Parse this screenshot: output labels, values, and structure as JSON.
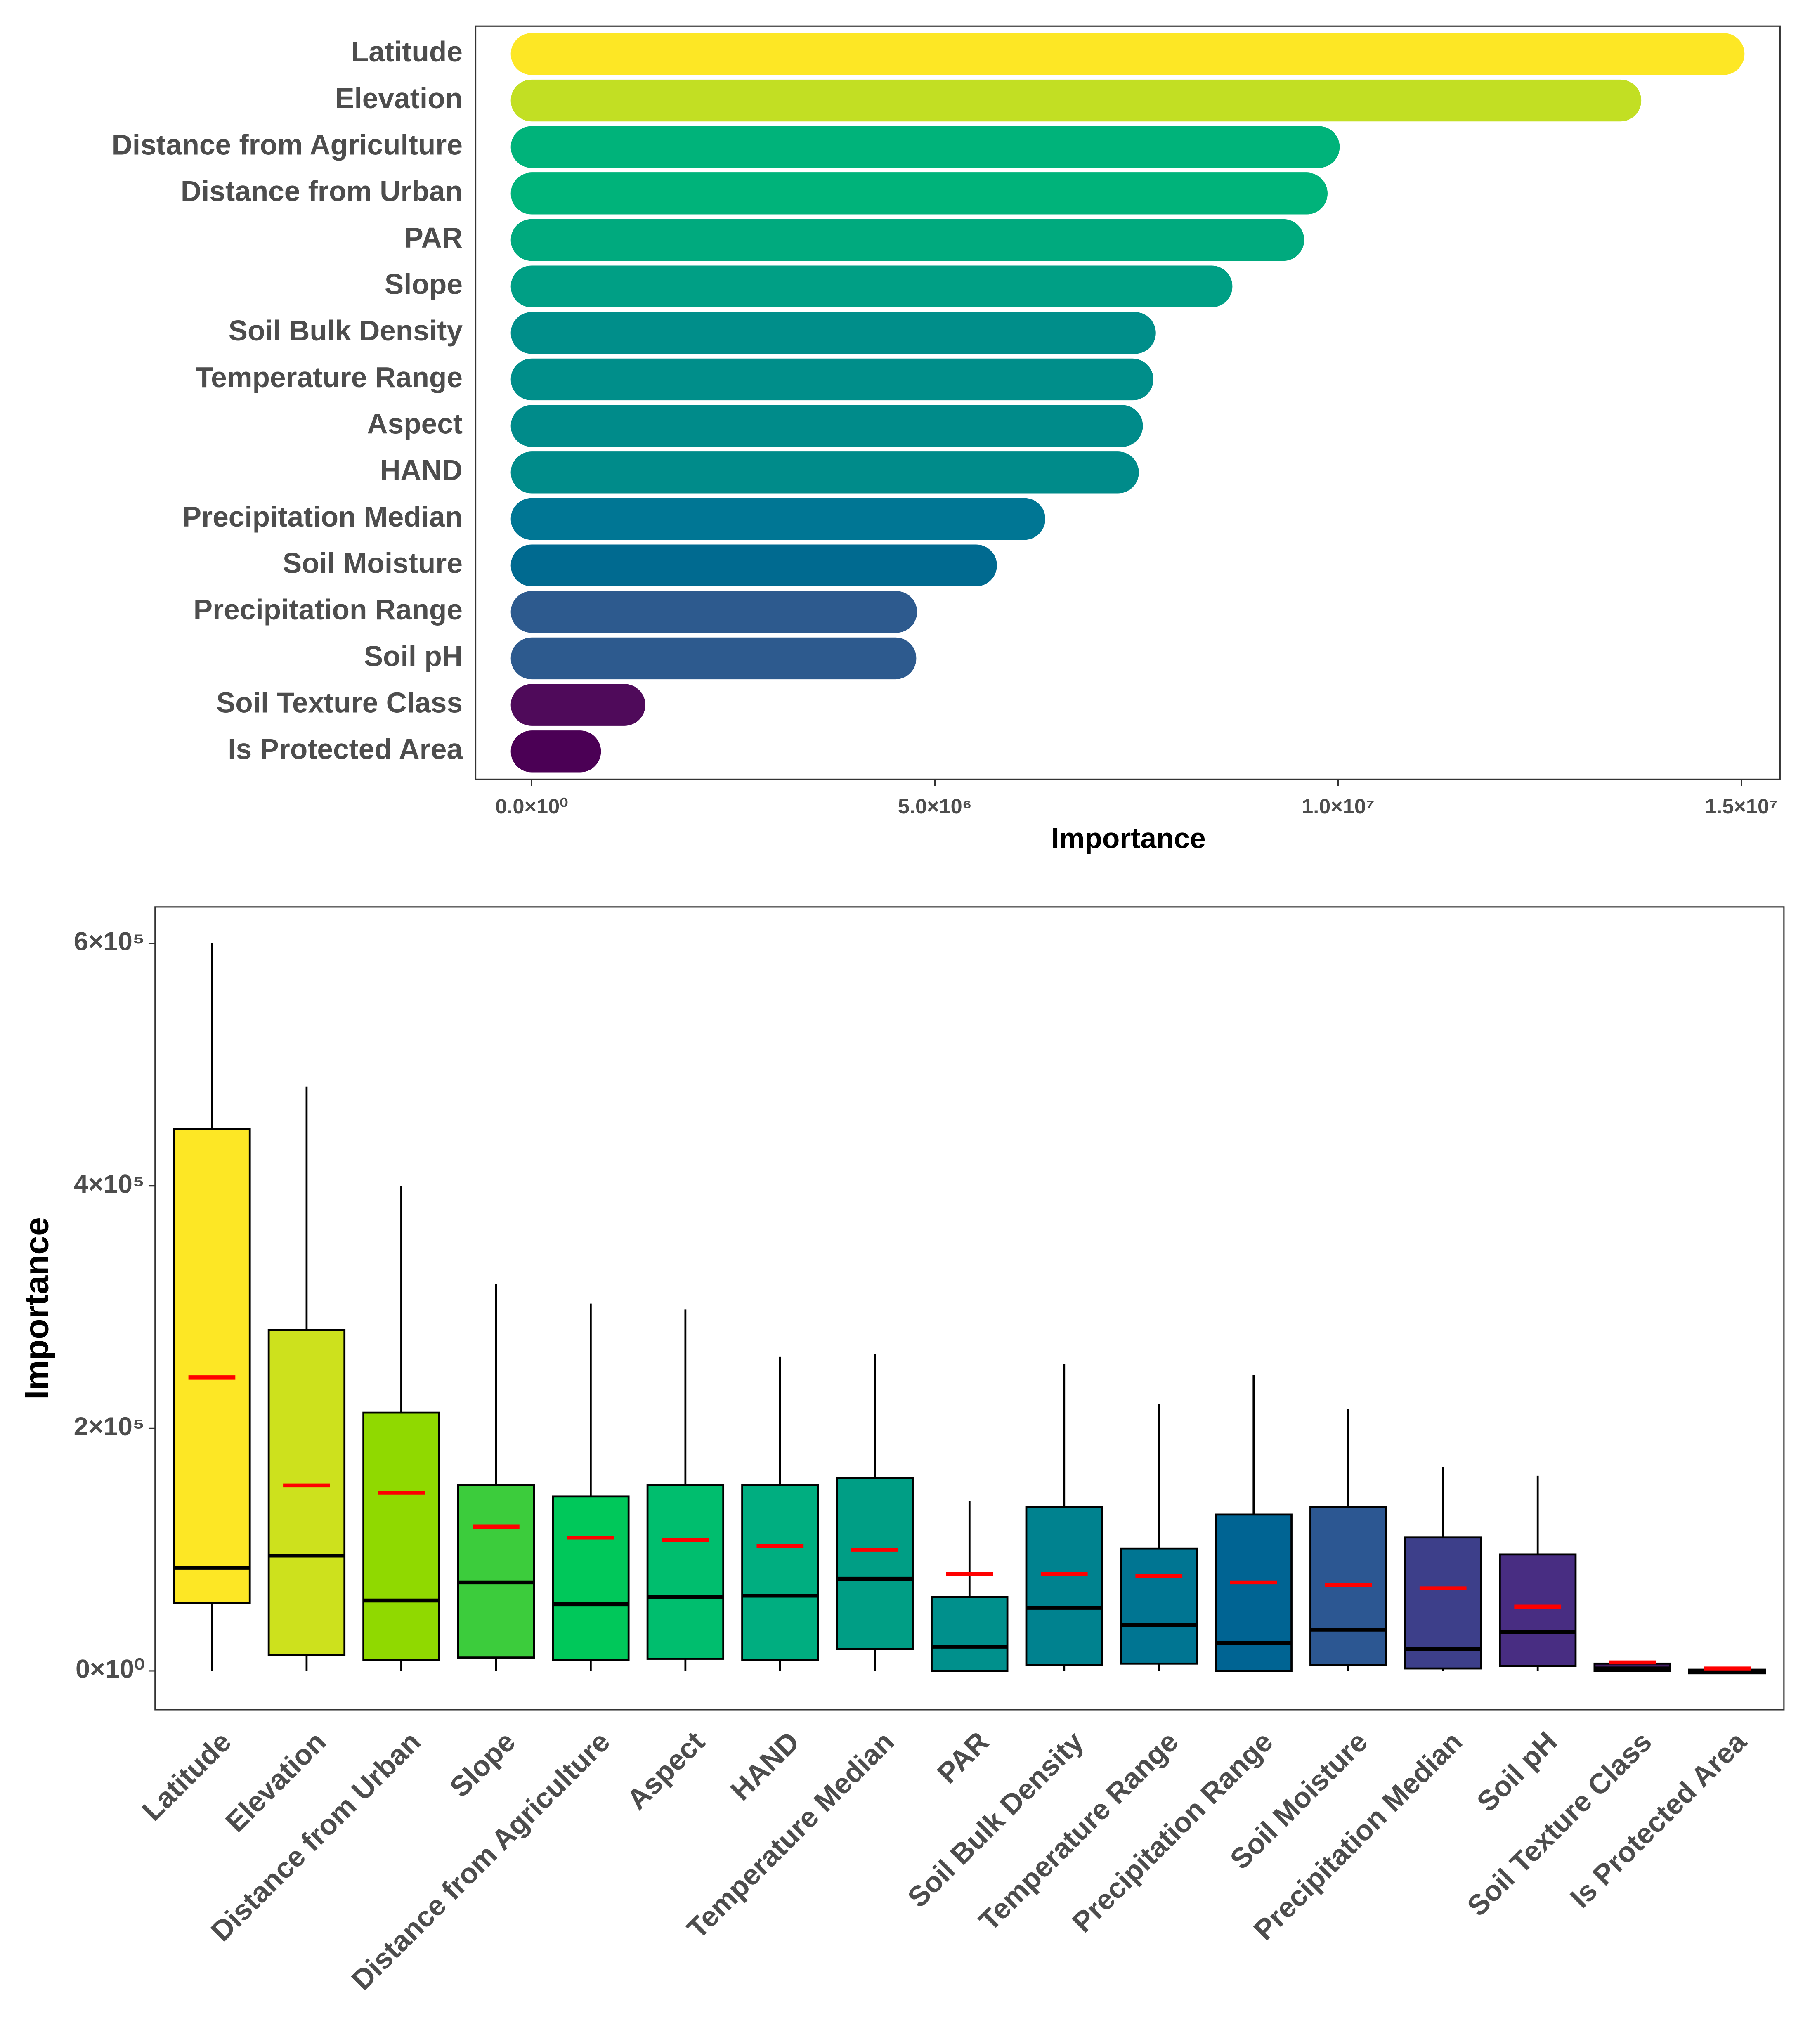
{
  "chart_data": [
    {
      "type": "bar",
      "orientation": "horizontal",
      "categories": [
        "Latitude",
        "Elevation",
        "Distance from Agriculture",
        "Distance from Urban",
        "PAR",
        "Slope",
        "Soil Bulk Density",
        "Temperature Range",
        "Aspect",
        "HAND",
        "Precipitation Median",
        "Soil Moisture",
        "Precipitation Range",
        "Soil pH",
        "Soil Texture Class",
        "Is Protected Area"
      ],
      "values": [
        14780000,
        13500000,
        9760000,
        9610000,
        9320000,
        8430000,
        7480000,
        7450000,
        7320000,
        7270000,
        6110000,
        5510000,
        4520000,
        4510000,
        1150000,
        600000
      ],
      "colors": [
        "#fde725",
        "#c2df23",
        "#00b37a",
        "#00b37a",
        "#00aa7e",
        "#009f85",
        "#008e8a",
        "#008e8a",
        "#008b8a",
        "#008b8a",
        "#007694",
        "#006a90",
        "#2d5a8e",
        "#2d5a8e",
        "#4f0a5a",
        "#4b0055"
      ],
      "xlabel": "Importance",
      "xlim": [
        -695000,
        15480000
      ],
      "xticks": [
        {
          "value": 0,
          "label": "0.0×10⁰"
        },
        {
          "value": 5000000,
          "label": "5.0×10⁶"
        },
        {
          "value": 10000000,
          "label": "1.0×10⁷"
        },
        {
          "value": 15000000,
          "label": "1.5×10⁷"
        }
      ]
    },
    {
      "type": "box",
      "categories": [
        "Latitude",
        "Elevation",
        "Distance from Urban",
        "Slope",
        "Distance from Agriculture",
        "Aspect",
        "HAND",
        "Temperature Median",
        "PAR",
        "Soil Bulk Density",
        "Temperature Range",
        "Precipitation Range",
        "Soil Moisture",
        "Precipitation Median",
        "Soil pH",
        "Soil Texture Class",
        "Is Protected Area"
      ],
      "low": [
        0,
        0,
        0,
        0,
        0,
        0,
        0,
        0,
        0,
        0,
        0,
        0,
        0,
        0,
        0,
        0,
        -2000
      ],
      "q1": [
        56000,
        13000,
        9000,
        11000,
        9000,
        10000,
        9000,
        18000,
        0,
        5000,
        6000,
        0,
        5000,
        2000,
        4000,
        0,
        -2000
      ],
      "median": [
        85000,
        95000,
        58000,
        73000,
        55000,
        61000,
        62000,
        76000,
        20000,
        52000,
        38000,
        23000,
        34000,
        18000,
        32000,
        2000,
        0
      ],
      "q3": [
        447000,
        281000,
        213000,
        153000,
        144000,
        153000,
        153000,
        159000,
        61000,
        135000,
        101000,
        129000,
        135000,
        110000,
        96000,
        6000,
        1000
      ],
      "high": [
        600000,
        482000,
        400000,
        319000,
        303000,
        298000,
        259000,
        261000,
        140000,
        253000,
        220000,
        244000,
        216000,
        168000,
        161000,
        8000,
        2000
      ],
      "mean": [
        242000,
        153000,
        147000,
        119000,
        110000,
        108000,
        103000,
        100000,
        80000,
        80000,
        78000,
        73000,
        71000,
        68000,
        53000,
        7000,
        2000
      ],
      "colors": [
        "#fde725",
        "#cde11d",
        "#90d900",
        "#3ccc3c",
        "#00c85a",
        "#00be6e",
        "#00ae80",
        "#009e85",
        "#00908c",
        "#00828f",
        "#007592",
        "#006493",
        "#2c5792",
        "#3d3f8a",
        "#482d82",
        "#421d63",
        "#2a0a3f"
      ],
      "mean_color": "#ff0000",
      "ylabel": "Importance",
      "ylim": [
        -32000,
        630000
      ],
      "yticks": [
        {
          "value": 0,
          "label": "0×10⁰"
        },
        {
          "value": 200000,
          "label": "2×10⁵"
        },
        {
          "value": 400000,
          "label": "4×10⁵"
        },
        {
          "value": 600000,
          "label": "6×10⁵"
        }
      ]
    }
  ]
}
